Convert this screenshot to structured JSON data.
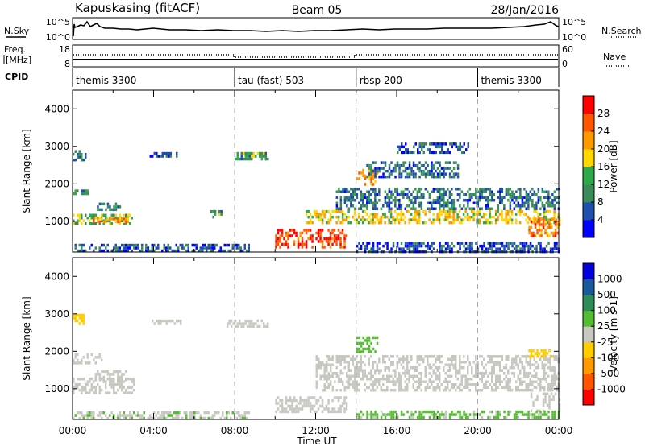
{
  "header": {
    "site": "Kapuskasing (fitACF)",
    "beam": "Beam 05",
    "date": "28/Jan/2016"
  },
  "top_panels": {
    "nsky": {
      "label": "N.Sky",
      "ticks": [
        "10^5",
        "10^0"
      ]
    },
    "nsearch": {
      "label": "N.Search",
      "ticks": [
        "10^5",
        "10^0"
      ]
    },
    "freq": {
      "label_line1": "Freq.",
      "label_line2": "[MHz]",
      "ticks": [
        "18",
        "8"
      ]
    },
    "nave": {
      "label": "Nave",
      "ticks": [
        "60",
        "0"
      ]
    },
    "cpid": {
      "label": "CPID",
      "segments": [
        {
          "start": 0,
          "end": 8,
          "name": "themis 3300"
        },
        {
          "start": 8,
          "end": 14,
          "name": "tau (fast) 503"
        },
        {
          "start": 14,
          "end": 20,
          "name": "rbsp 200"
        },
        {
          "start": 20,
          "end": 24,
          "name": "themis 3300"
        }
      ]
    }
  },
  "colors": {
    "power": [
      "#0000ff",
      "#1f4faa",
      "#3a8a5a",
      "#2ea84a",
      "#ffd700",
      "#ff9900",
      "#ff5500",
      "#ff0000"
    ],
    "velocity": [
      "#ff0000",
      "#ff5500",
      "#ff9900",
      "#ffcc00",
      "#c8c8c0",
      "#55bb33",
      "#2e8b57",
      "#1a5a9a",
      "#0000dd"
    ]
  },
  "chart_data": [
    {
      "type": "heatmap",
      "panel": "power",
      "xlabel": "",
      "ylabel": "Slant Range [km]",
      "xlim": [
        0,
        24
      ],
      "ylim": [
        180,
        4500
      ],
      "yticks": [
        1000,
        2000,
        3000,
        4000
      ],
      "colorbar": {
        "label": "Power [dB]",
        "ticks": [
          "28",
          "24",
          "20",
          "16",
          "12",
          "8",
          "4"
        ],
        "range": [
          0,
          32
        ]
      },
      "bands": [
        {
          "t0": 0.0,
          "t1": 2.9,
          "r0": 900,
          "r1": 1200,
          "value": 14
        },
        {
          "t0": 1.0,
          "t1": 2.7,
          "r0": 950,
          "r1": 1100,
          "value": 22
        },
        {
          "t0": 0.0,
          "t1": 0.7,
          "r0": 1700,
          "r1": 1850,
          "value": 10
        },
        {
          "t0": 1.2,
          "t1": 2.4,
          "r0": 1300,
          "r1": 1500,
          "value": 9
        },
        {
          "t0": 0.0,
          "t1": 0.6,
          "r0": 2600,
          "r1": 2900,
          "value": 9
        },
        {
          "t0": 3.8,
          "t1": 5.3,
          "r0": 2750,
          "r1": 2850,
          "value": 6
        },
        {
          "t0": 8.0,
          "t1": 9.6,
          "r0": 2650,
          "r1": 2850,
          "value": 12
        },
        {
          "t0": 6.8,
          "t1": 7.3,
          "r0": 1100,
          "r1": 1300,
          "value": 12
        },
        {
          "t0": 0.0,
          "t1": 8.7,
          "r0": 200,
          "r1": 400,
          "value": 6
        },
        {
          "t0": 10.0,
          "t1": 13.5,
          "r0": 300,
          "r1": 800,
          "value": 28
        },
        {
          "t0": 11.5,
          "t1": 24.0,
          "r0": 950,
          "r1": 1300,
          "value": 19
        },
        {
          "t0": 13.0,
          "t1": 24.0,
          "r0": 1350,
          "r1": 1900,
          "value": 8
        },
        {
          "t0": 14.0,
          "t1": 15.0,
          "r0": 2000,
          "r1": 2400,
          "value": 22
        },
        {
          "t0": 14.5,
          "t1": 19.0,
          "r0": 2200,
          "r1": 2600,
          "value": 8
        },
        {
          "t0": 16.0,
          "t1": 19.5,
          "r0": 2800,
          "r1": 3100,
          "value": 6
        },
        {
          "t0": 22.5,
          "t1": 24.0,
          "r0": 600,
          "r1": 1100,
          "value": 24
        },
        {
          "t0": 14.0,
          "t1": 24.0,
          "r0": 200,
          "r1": 450,
          "value": 5
        }
      ]
    },
    {
      "type": "heatmap",
      "panel": "velocity",
      "xlabel": "Time UT",
      "ylabel": "Slant Range [km]",
      "xlim": [
        0,
        24
      ],
      "ylim": [
        180,
        4500
      ],
      "xticks": [
        "00:00",
        "04:00",
        "08:00",
        "12:00",
        "16:00",
        "20:00",
        "00:00"
      ],
      "yticks": [
        1000,
        2000,
        3000,
        4000
      ],
      "colorbar": {
        "label": "Velocity [m s-1]",
        "ticks": [
          "1000",
          "500",
          "100",
          "25",
          "-25",
          "-100",
          "-500",
          "-1000"
        ],
        "range": [
          -1200,
          1200
        ]
      },
      "bands": [
        {
          "t0": 0.0,
          "t1": 3.0,
          "r0": 850,
          "r1": 1300,
          "value": 0
        },
        {
          "t0": 0.0,
          "t1": 1.4,
          "r0": 1700,
          "r1": 1950,
          "value": 0
        },
        {
          "t0": 1.1,
          "t1": 2.6,
          "r0": 1250,
          "r1": 1500,
          "value": -60
        },
        {
          "t0": 0.0,
          "t1": 0.5,
          "r0": 2700,
          "r1": 3000,
          "value": -300
        },
        {
          "t0": 7.6,
          "t1": 9.6,
          "r0": 2650,
          "r1": 2850,
          "value": 0
        },
        {
          "t0": 3.8,
          "t1": 5.3,
          "r0": 2750,
          "r1": 2850,
          "value": 0
        },
        {
          "t0": 0.0,
          "t1": 8.7,
          "r0": 200,
          "r1": 400,
          "value": 120
        },
        {
          "t0": 10.0,
          "t1": 13.5,
          "r0": 350,
          "r1": 800,
          "value": -90
        },
        {
          "t0": 12.0,
          "t1": 24.0,
          "r0": 950,
          "r1": 1900,
          "value": 0
        },
        {
          "t0": 14.0,
          "t1": 15.0,
          "r0": 2000,
          "r1": 2400,
          "value": 200
        },
        {
          "t0": 22.5,
          "t1": 23.6,
          "r0": 1850,
          "r1": 2050,
          "value": -300
        },
        {
          "t0": 22.6,
          "t1": 24.0,
          "r0": 400,
          "r1": 900,
          "value": 0
        },
        {
          "t0": 14.0,
          "t1": 24.0,
          "r0": 200,
          "r1": 420,
          "value": 150
        }
      ]
    }
  ]
}
